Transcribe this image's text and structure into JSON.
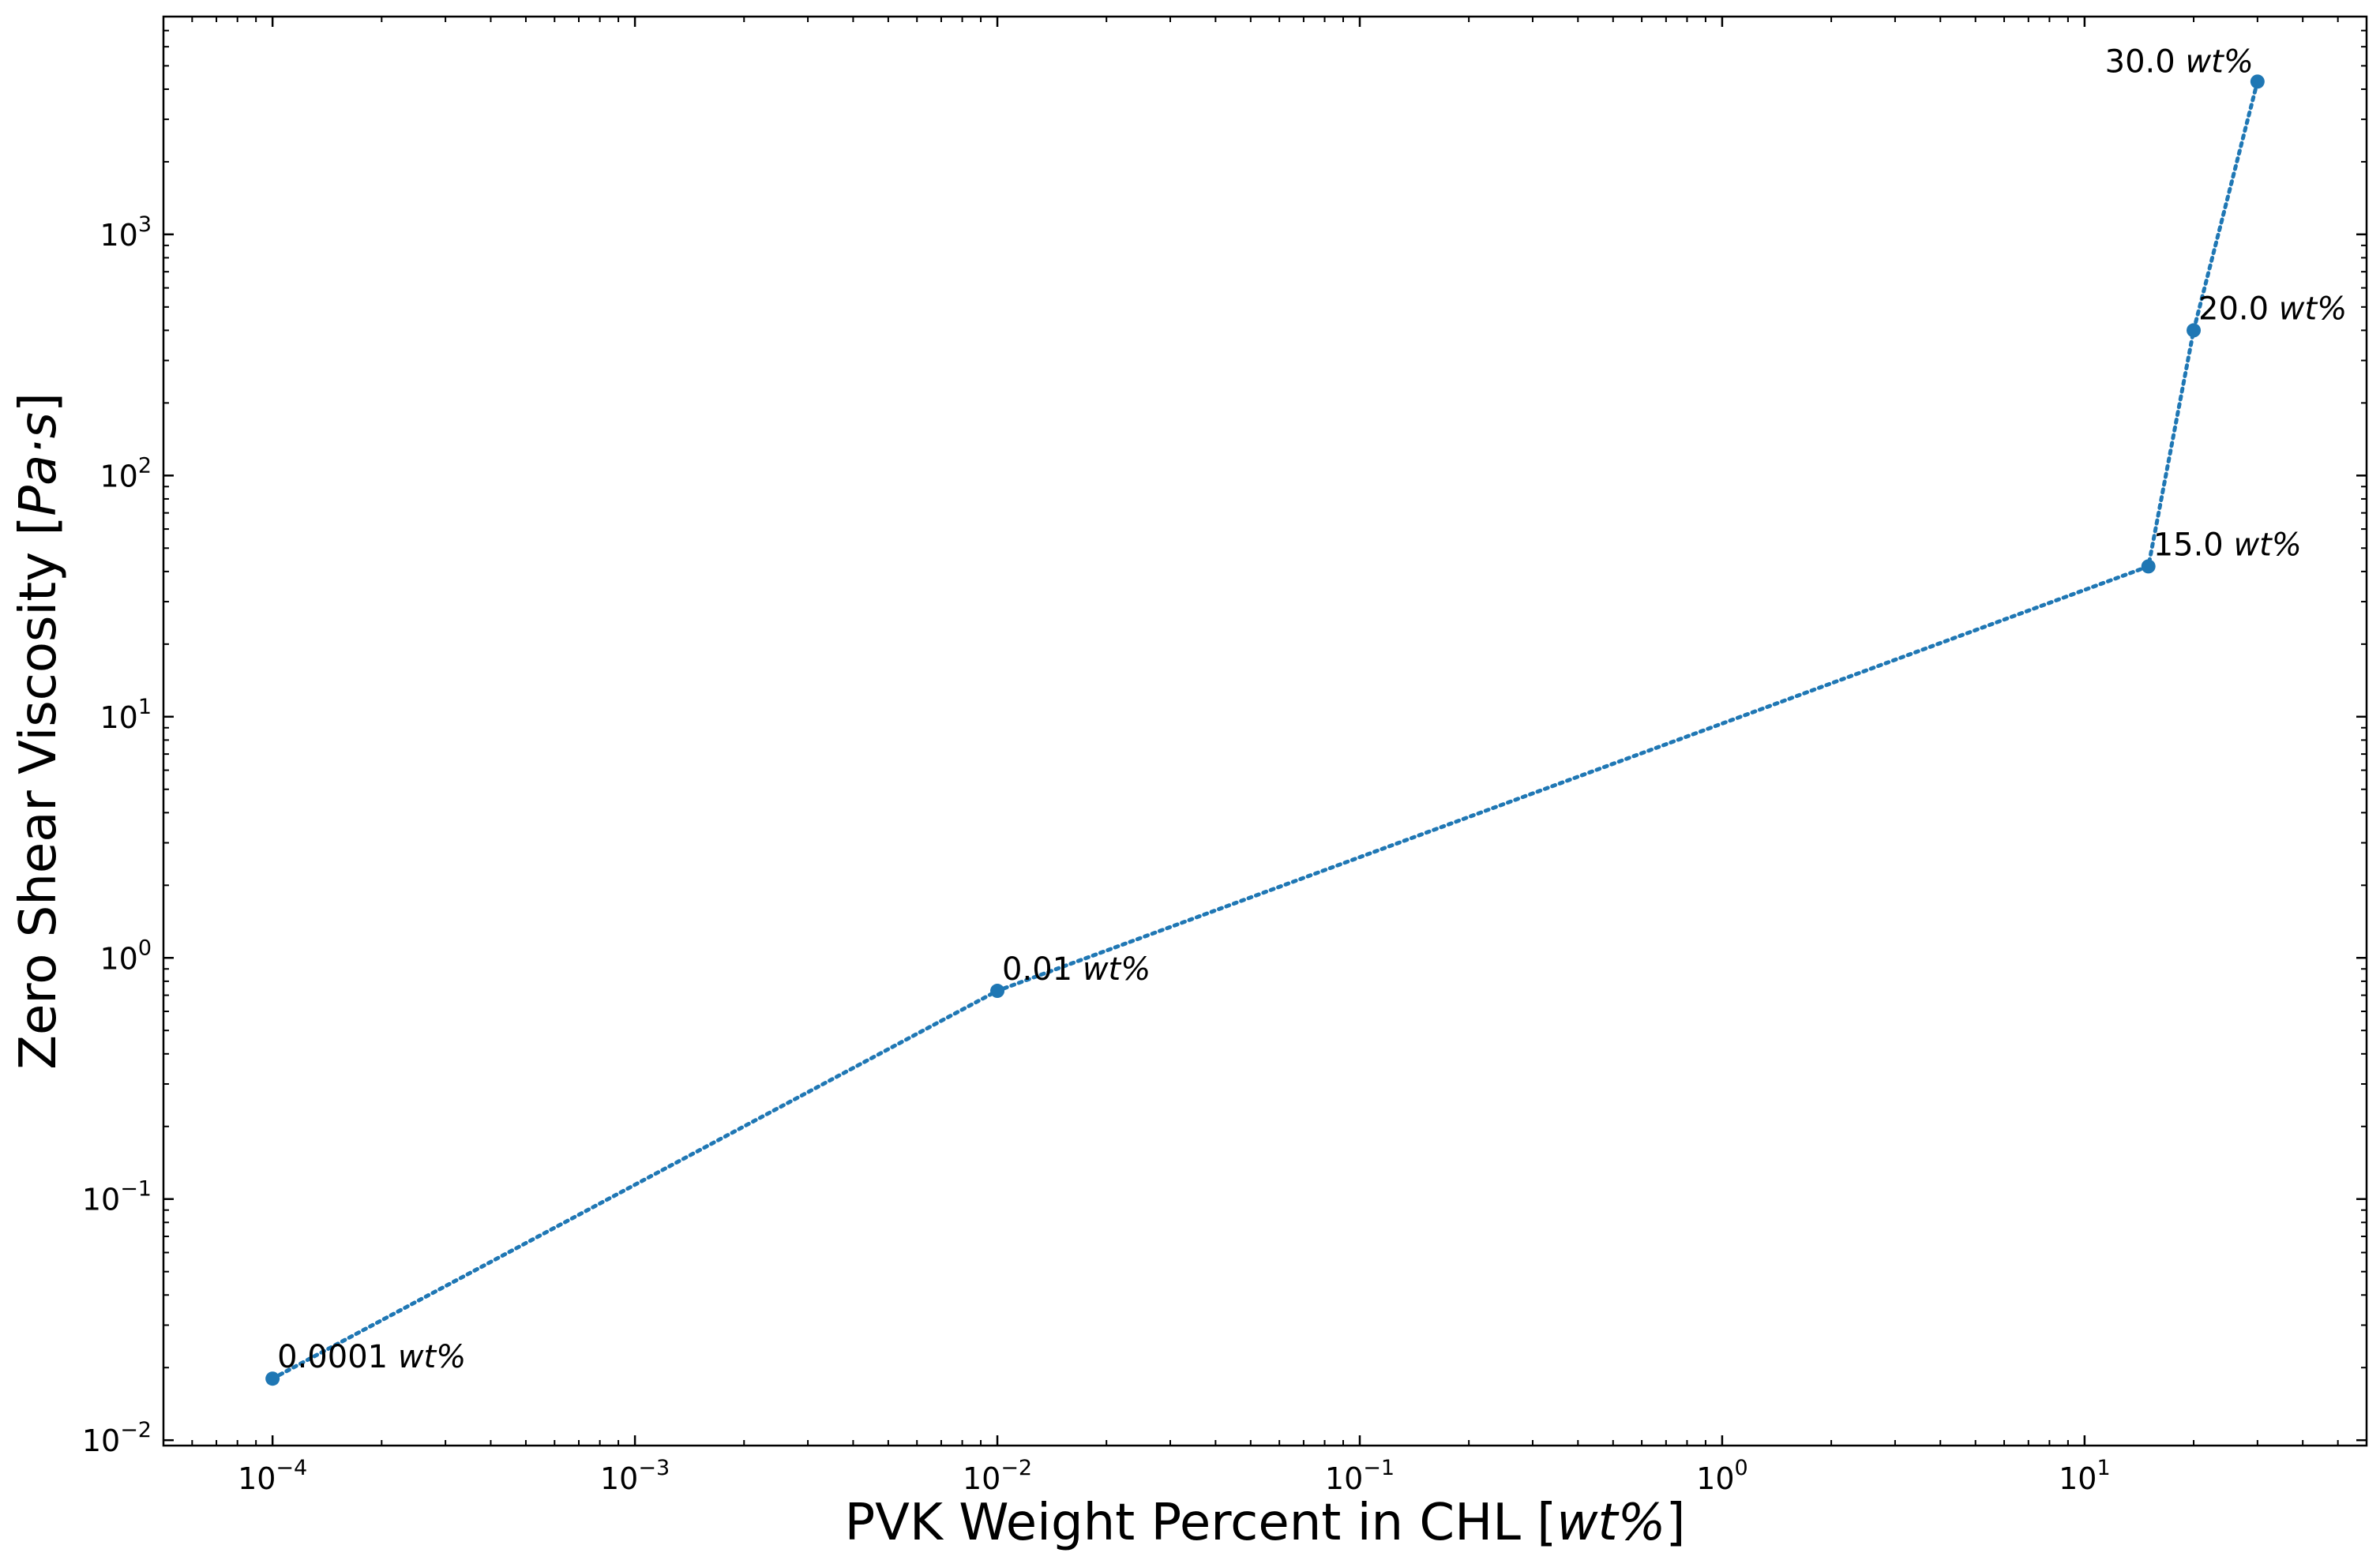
{
  "chart_data": {
    "type": "line",
    "title": "",
    "xlabel": "PVK Weight Percent in CHL",
    "xlabel_unit": "wt%",
    "ylabel": "Zero Shear Viscosity",
    "ylabel_unit": "Pa·s",
    "xscale": "log",
    "yscale": "log",
    "xlim": [
      5e-05,
      60
    ],
    "ylim": [
      0.0095,
      8000
    ],
    "grid": false,
    "legend": "none",
    "series": [
      {
        "color": "#1f77b4",
        "line_style": "dotted",
        "marker": "circle",
        "x": [
          0.0001,
          0.01,
          15.0,
          20.0,
          30.0
        ],
        "y": [
          0.018,
          0.73,
          42,
          400,
          4300
        ]
      }
    ],
    "annotations": [
      {
        "value": "0.0001",
        "unit": "wt%",
        "x": 0.0001,
        "y": 0.018,
        "anchor": "right"
      },
      {
        "value": "0.01",
        "unit": "wt%",
        "x": 0.01,
        "y": 0.73,
        "anchor": "right"
      },
      {
        "value": "15.0",
        "unit": "wt%",
        "x": 15.0,
        "y": 42,
        "anchor": "right"
      },
      {
        "value": "20.0",
        "unit": "wt%",
        "x": 20.0,
        "y": 400,
        "anchor": "right"
      },
      {
        "value": "30.0",
        "unit": "wt%",
        "x": 30.0,
        "y": 4300,
        "anchor": "left"
      }
    ],
    "x_ticks": [
      {
        "value": 0.0001,
        "base": "10",
        "exp": "−4"
      },
      {
        "value": 0.001,
        "base": "10",
        "exp": "−3"
      },
      {
        "value": 0.01,
        "base": "10",
        "exp": "−2"
      },
      {
        "value": 0.1,
        "base": "10",
        "exp": "−1"
      },
      {
        "value": 1,
        "base": "10",
        "exp": "0"
      },
      {
        "value": 10,
        "base": "10",
        "exp": "1"
      }
    ],
    "y_ticks": [
      {
        "value": 0.01,
        "base": "10",
        "exp": "−2"
      },
      {
        "value": 0.1,
        "base": "10",
        "exp": "−1"
      },
      {
        "value": 1,
        "base": "10",
        "exp": "0"
      },
      {
        "value": 10,
        "base": "10",
        "exp": "1"
      },
      {
        "value": 100,
        "base": "10",
        "exp": "2"
      },
      {
        "value": 1000,
        "base": "10",
        "exp": "3"
      }
    ]
  }
}
